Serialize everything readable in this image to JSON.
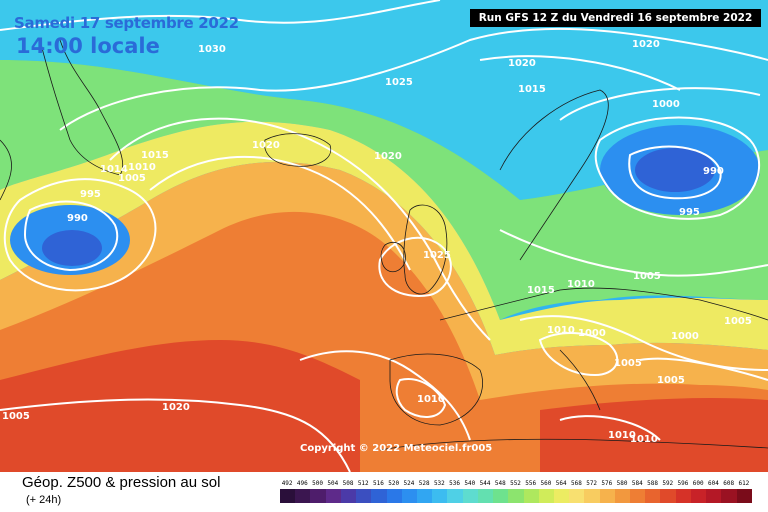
{
  "header": {
    "date": "Samedi 17 septembre 2022",
    "time": "14:00 locale",
    "run": "Run GFS 12 Z du Vendredi 16 septembre 2022"
  },
  "copyright": "Copyright © 2022 Meteociel.fr005",
  "isobar_labels": [
    "1030",
    "1025",
    "1020",
    "1020",
    "1020",
    "1020",
    "1015",
    "1014",
    "1010",
    "1005",
    "995",
    "990",
    "1000",
    "990",
    "995",
    "1025",
    "1015",
    "1010",
    "1005",
    "1005",
    "1010",
    "1000",
    "1005",
    "1000",
    "1005",
    "1005",
    "1010",
    "1010",
    "1010",
    "1015",
    "1020"
  ],
  "legend": {
    "title": "Géop. Z500 & pression au sol",
    "subtitle": "(+ 24h)",
    "scale": [
      "492",
      "496",
      "500",
      "504",
      "508",
      "512",
      "516",
      "520",
      "524",
      "528",
      "532",
      "536",
      "540",
      "544",
      "548",
      "552",
      "556",
      "560",
      "564",
      "568",
      "572",
      "576",
      "580",
      "584",
      "588",
      "592",
      "596",
      "600",
      "604",
      "608",
      "612"
    ],
    "colors": [
      "#2a0f3a",
      "#3b1650",
      "#4e1d6b",
      "#5e2a8a",
      "#4b3aa8",
      "#3b4fc0",
      "#2f63d6",
      "#2a78e8",
      "#2c8ff0",
      "#31a6f2",
      "#3cbcf0",
      "#4fd0e6",
      "#5edccf",
      "#63e0b0",
      "#6ee28e",
      "#8ce46e",
      "#aee85e",
      "#d0ec5a",
      "#ecec62",
      "#f8e070",
      "#f8cc60",
      "#f6b24c",
      "#f2983e",
      "#ee7e34",
      "#e8642e",
      "#e04a2a",
      "#d63228",
      "#c82228",
      "#b41826",
      "#9a1222",
      "#7a0c1a"
    ]
  }
}
